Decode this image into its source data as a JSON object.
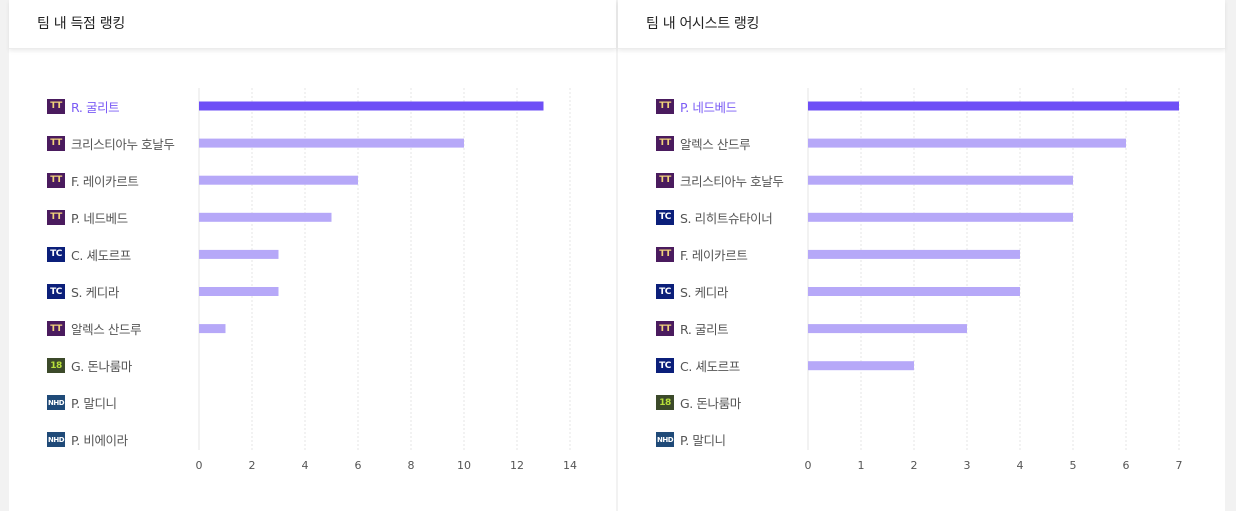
{
  "panels": [
    {
      "title": "팀 내 득점 랭킹",
      "chart_data": {
        "type": "bar",
        "orientation": "horizontal",
        "title": "팀 내 득점 랭킹",
        "xlim": [
          0,
          14
        ],
        "ticks": [
          0,
          2,
          4,
          6,
          8,
          10,
          12,
          14
        ],
        "grid": true,
        "categories": [
          "R. 굴리트",
          "크리스티아누 호날두",
          "F. 레이카르트",
          "P. 네드베드",
          "C. 셰도르프",
          "S. 케디라",
          "알렉스 산드루",
          "G. 돈나룸마",
          "P. 말디니",
          "P. 비에이라"
        ],
        "values": [
          13,
          10,
          6,
          5,
          3,
          3,
          1,
          0,
          0,
          0
        ],
        "badges": [
          "TT",
          "TT",
          "TT",
          "TT",
          "TC",
          "TC",
          "TT",
          "18",
          "NHD",
          "NHD"
        ],
        "highlight_index": 0
      }
    },
    {
      "title": "팀 내 어시스트 랭킹",
      "chart_data": {
        "type": "bar",
        "orientation": "horizontal",
        "title": "팀 내 어시스트 랭킹",
        "xlim": [
          0,
          7
        ],
        "ticks": [
          0,
          1,
          2,
          3,
          4,
          5,
          6,
          7
        ],
        "grid": true,
        "categories": [
          "P. 네드베드",
          "알렉스 산드루",
          "크리스티아누 호날두",
          "S. 리히트슈타이너",
          "F. 레이카르트",
          "S. 케디라",
          "R. 굴리트",
          "C. 셰도르프",
          "G. 돈나룸마",
          "P. 말디니"
        ],
        "values": [
          7,
          6,
          5,
          5,
          4,
          4,
          3,
          2,
          0,
          0
        ],
        "badges": [
          "TT",
          "TT",
          "TT",
          "TC",
          "TT",
          "TC",
          "TT",
          "TC",
          "18",
          "NHD"
        ],
        "highlight_index": 0
      }
    }
  ],
  "colors": {
    "bar_highlight": "#6e4ff6",
    "bar_normal": "#b6a8f8",
    "label_highlight": "#7b5cf5",
    "badge_TT": "#4a1b5e",
    "badge_TT_text": "#f1d27a",
    "badge_TC": "#0b1f7a",
    "badge_18": "#3c4a2a",
    "badge_18_text": "#b8e03a",
    "badge_NHD": "#1f4a78"
  },
  "icons": {
    "TT": "season-badge-icon",
    "TC": "season-badge-icon",
    "18": "season-badge-icon",
    "NHD": "season-badge-icon"
  }
}
